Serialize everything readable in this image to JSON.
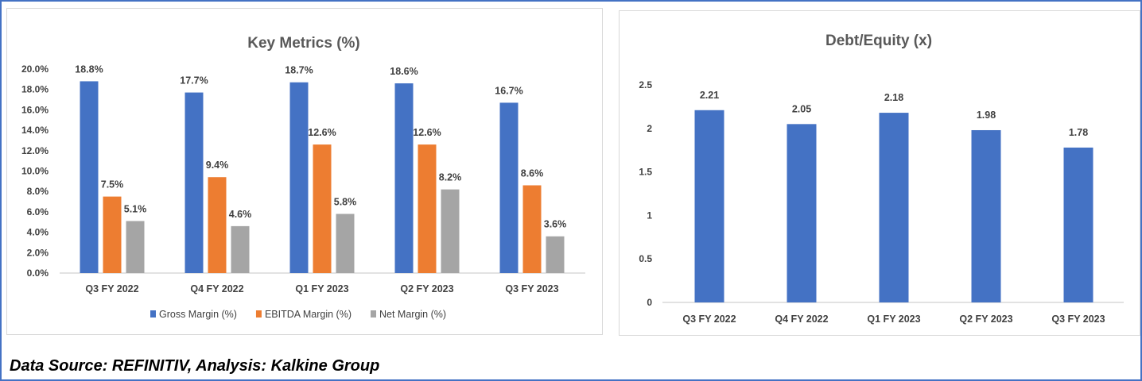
{
  "chart_data": [
    {
      "type": "bar",
      "title": "Key Metrics (%)",
      "categories": [
        "Q3 FY 2022",
        "Q4 FY 2022",
        "Q1 FY 2023",
        "Q2 FY 2023",
        "Q3 FY 2023"
      ],
      "series": [
        {
          "name": "Gross Margin (%)",
          "color": "#4472c4",
          "values": [
            18.8,
            17.7,
            18.7,
            18.6,
            16.7
          ],
          "labels": [
            "18.8%",
            "17.7%",
            "18.7%",
            "18.6%",
            "16.7%"
          ]
        },
        {
          "name": "EBITDA Margin (%)",
          "color": "#ed7d31",
          "values": [
            7.5,
            9.4,
            12.6,
            12.6,
            8.6
          ],
          "labels": [
            "7.5%",
            "9.4%",
            "12.6%",
            "12.6%",
            "8.6%"
          ]
        },
        {
          "name": "Net Margin (%)",
          "color": "#a5a5a5",
          "values": [
            5.1,
            4.6,
            5.8,
            8.2,
            3.6
          ],
          "labels": [
            "5.1%",
            "4.6%",
            "5.8%",
            "8.2%",
            "3.6%"
          ]
        }
      ],
      "ylim": [
        0,
        20
      ],
      "yticks": [
        "0.0%",
        "2.0%",
        "4.0%",
        "6.0%",
        "8.0%",
        "10.0%",
        "12.0%",
        "14.0%",
        "16.0%",
        "18.0%",
        "20.0%"
      ],
      "legend": "bottom",
      "grid": false
    },
    {
      "type": "bar",
      "title": "Debt/Equity (x)",
      "categories": [
        "Q3 FY 2022",
        "Q4 FY 2022",
        "Q1 FY 2023",
        "Q2 FY 2023",
        "Q3 FY 2023"
      ],
      "series": [
        {
          "name": "Debt/Equity",
          "color": "#4472c4",
          "values": [
            2.21,
            2.05,
            2.18,
            1.98,
            1.78
          ],
          "labels": [
            "2.21",
            "2.05",
            "2.18",
            "1.98",
            "1.78"
          ]
        }
      ],
      "ylim": [
        0,
        2.5
      ],
      "yticks": [
        "0",
        "0.5",
        "1",
        "1.5",
        "2",
        "2.5"
      ],
      "grid": false
    }
  ],
  "footer": "Data Source: REFINITIV, Analysis: Kalkine Group"
}
